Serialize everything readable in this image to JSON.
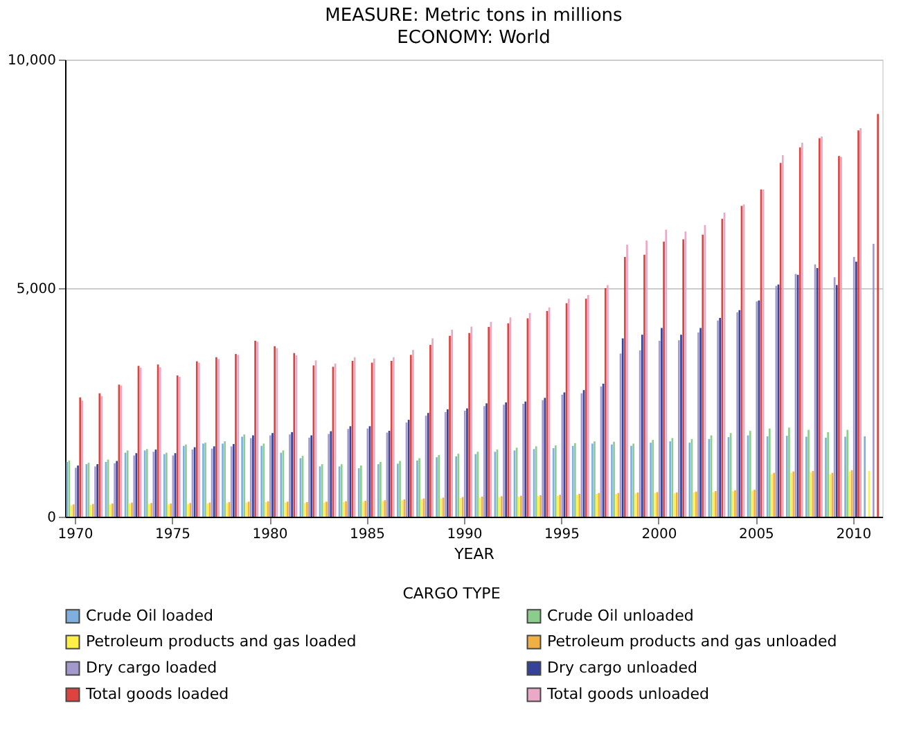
{
  "chart_data": {
    "type": "bar",
    "title": "MEASURE: Metric tons in millions",
    "subtitle": "ECONOMY: World",
    "xlabel": "YEAR",
    "legend_title": "CARGO TYPE",
    "legend": "bottom",
    "grid": "y",
    "x": [
      1970,
      1971,
      1972,
      1973,
      1974,
      1975,
      1976,
      1977,
      1978,
      1979,
      1980,
      1981,
      1982,
      1983,
      1984,
      1985,
      1986,
      1987,
      1988,
      1989,
      1990,
      1991,
      1992,
      1993,
      1994,
      1995,
      1996,
      1997,
      1998,
      1999,
      2000,
      2001,
      2002,
      2003,
      2004,
      2005,
      2006,
      2007,
      2008,
      2009,
      2010,
      2011
    ],
    "xlim": [
      1969.5,
      2011.5
    ],
    "xticks": [
      1970,
      1975,
      1980,
      1985,
      1990,
      1995,
      2000,
      2005,
      2010
    ],
    "ylim": [
      0,
      10000
    ],
    "yticks": [
      {
        "value": 0,
        "label": "0"
      },
      {
        "value": 5000,
        "label": "5,000"
      },
      {
        "value": 10000,
        "label": "10,000"
      }
    ],
    "series": [
      {
        "name": "Crude Oil loaded",
        "color": "#6fa8dc",
        "values": [
          1200,
          1150,
          1200,
          1400,
          1450,
          1370,
          1550,
          1600,
          1600,
          1750,
          1550,
          1400,
          1280,
          1100,
          1100,
          1060,
          1150,
          1160,
          1230,
          1300,
          1320,
          1370,
          1420,
          1450,
          1480,
          1500,
          1550,
          1600,
          1580,
          1550,
          1620,
          1650,
          1620,
          1700,
          1740,
          1780,
          1760,
          1770,
          1750,
          1730,
          1750,
          1760
        ]
      },
      {
        "name": "Crude Oil unloaded",
        "color": "#7fc97f",
        "values": [
          1230,
          1180,
          1250,
          1450,
          1480,
          1400,
          1580,
          1620,
          1650,
          1800,
          1600,
          1450,
          1330,
          1150,
          1150,
          1120,
          1200,
          1220,
          1280,
          1350,
          1380,
          1420,
          1470,
          1510,
          1540,
          1560,
          1610,
          1650,
          1640,
          1600,
          1680,
          1720,
          1700,
          1780,
          1830,
          1880,
          1930,
          1950,
          1900,
          1850,
          1900,
          null
        ]
      },
      {
        "name": "Petroleum products and gas loaded",
        "color": "#ffee33",
        "values": [
          250,
          260,
          270,
          290,
          280,
          270,
          280,
          290,
          300,
          310,
          320,
          310,
          300,
          310,
          320,
          330,
          340,
          360,
          380,
          400,
          410,
          420,
          430,
          440,
          450,
          460,
          480,
          500,
          500,
          510,
          520,
          510,
          530,
          540,
          560,
          570,
          930,
          960,
          970,
          930,
          990,
          1000
        ]
      },
      {
        "name": "Petroleum products and gas unloaded",
        "color": "#f0a830",
        "values": [
          270,
          280,
          290,
          310,
          300,
          290,
          300,
          310,
          320,
          330,
          340,
          330,
          320,
          330,
          340,
          350,
          360,
          380,
          400,
          420,
          430,
          440,
          450,
          460,
          470,
          480,
          500,
          520,
          520,
          530,
          540,
          530,
          550,
          560,
          580,
          590,
          960,
          990,
          1000,
          960,
          1020,
          null
        ]
      },
      {
        "name": "Dry cargo loaded",
        "color": "#9b8fc8",
        "values": [
          1070,
          1100,
          1170,
          1340,
          1420,
          1340,
          1470,
          1490,
          1540,
          1720,
          1780,
          1800,
          1730,
          1810,
          1920,
          1930,
          1840,
          2060,
          2210,
          2290,
          2320,
          2420,
          2450,
          2470,
          2550,
          2670,
          2700,
          2850,
          3570,
          3640,
          3850,
          3860,
          4030,
          4290,
          4470,
          4710,
          5050,
          5310,
          5520,
          5240,
          5680,
          5970
        ]
      },
      {
        "name": "Dry cargo unloaded",
        "color": "#1f2f8f",
        "values": [
          1120,
          1150,
          1220,
          1390,
          1470,
          1390,
          1520,
          1540,
          1590,
          1780,
          1830,
          1850,
          1780,
          1870,
          1980,
          1980,
          1880,
          2120,
          2270,
          2350,
          2370,
          2480,
          2500,
          2520,
          2600,
          2720,
          2770,
          2910,
          3900,
          3980,
          4130,
          3980,
          4130,
          4350,
          4520,
          4730,
          5080,
          5290,
          5440,
          5070,
          5580,
          null
        ]
      },
      {
        "name": "Total goods loaded",
        "color": "#d9302b",
        "values": [
          2610,
          2700,
          2890,
          3300,
          3330,
          3090,
          3400,
          3490,
          3560,
          3850,
          3730,
          3580,
          3310,
          3280,
          3410,
          3370,
          3410,
          3540,
          3760,
          3960,
          4020,
          4150,
          4230,
          4340,
          4500,
          4670,
          4770,
          5000,
          5680,
          5730,
          6020,
          6070,
          6170,
          6520,
          6800,
          7160,
          7740,
          8080,
          8280,
          7890,
          8450,
          8810
        ]
      },
      {
        "name": "Total goods unloaded",
        "color": "#e8a0c0",
        "values": [
          2540,
          2640,
          2870,
          3260,
          3270,
          3060,
          3370,
          3450,
          3540,
          3830,
          3690,
          3530,
          3420,
          3350,
          3490,
          3460,
          3490,
          3650,
          3900,
          4090,
          4160,
          4260,
          4360,
          4460,
          4580,
          4770,
          4850,
          5070,
          5950,
          6040,
          6280,
          6240,
          6380,
          6650,
          6830,
          7160,
          7910,
          8180,
          8320,
          7870,
          8500,
          null
        ]
      }
    ]
  }
}
